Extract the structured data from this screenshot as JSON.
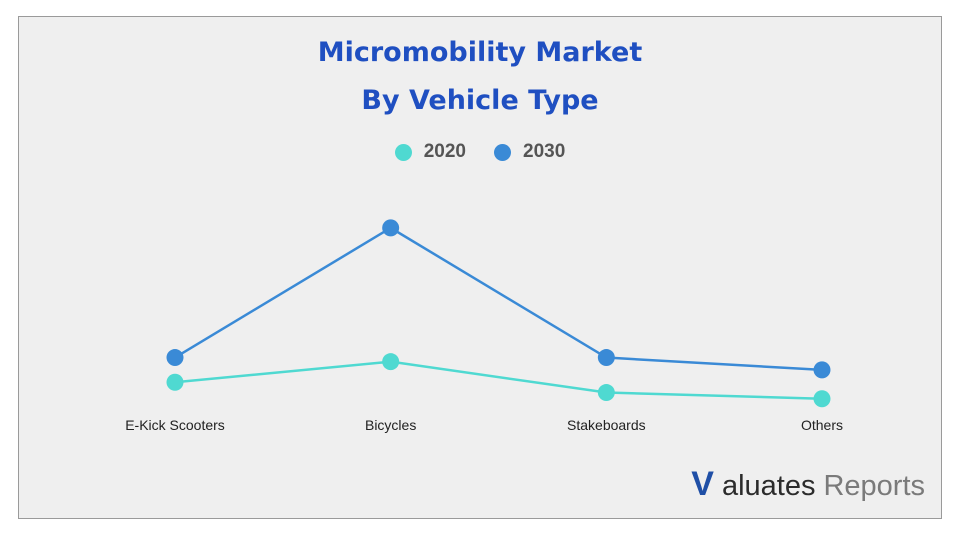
{
  "chart_data": {
    "type": "line",
    "title": "Micromobility Market",
    "subtitle": "By Vehicle Type",
    "categories": [
      "E-Kick Scooters",
      "Bicycles",
      "Stakeboards",
      "Others"
    ],
    "series": [
      {
        "name": "2020",
        "values": [
          3,
          4,
          2.5,
          2.2
        ],
        "color": "#4fd9d1"
      },
      {
        "name": "2030",
        "values": [
          4.2,
          10.5,
          4.2,
          3.6
        ],
        "color": "#3a8ad6"
      }
    ],
    "ylim": [
      0,
      12
    ],
    "grid": false,
    "legend_position": "top-center"
  },
  "brand": {
    "mark": "V",
    "name_dark": "aluates",
    "name_light": "Reports",
    "mark_color": "#1f4fa6"
  }
}
